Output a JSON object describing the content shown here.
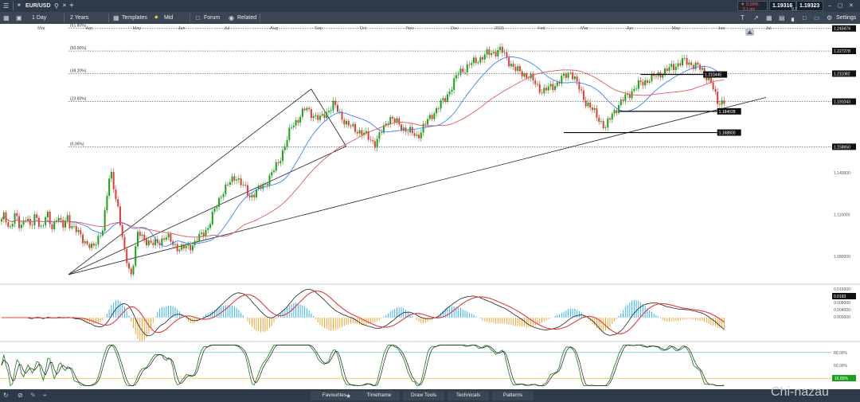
{
  "topbar": {
    "symbol": "EUR/USD",
    "change_pct": "▼ 0.09%",
    "change_pips": "0.1 pts",
    "bid": "1.19316",
    "ask": "1.19323",
    "spread": "0.7",
    "settings_label": "Settings"
  },
  "toolbar": {
    "interval": "1 Day",
    "range": "2 Years",
    "templates": "Templates",
    "mode": "Mid",
    "forum": "Forum",
    "related": "Related"
  },
  "bottom_tabs": [
    "Favourites",
    "Timeframe",
    "Draw Tools",
    "Technicals",
    "Patterns"
  ],
  "watermark": "Chi-nazau",
  "colors": {
    "bull_candle": "#1aa11a",
    "bear_candle": "#e23b3b",
    "ma_fast": "#3a82f7",
    "ma_slow": "#e2585a",
    "macd_pos": "#36b3f0",
    "macd_neg": "#f2a431",
    "stoch_k": "#2a8a2a",
    "stoch_d": "#1a1a1a",
    "level_line": "#000000",
    "topbar_bg": "#2f3a48"
  },
  "chart_data": {
    "type": "candlestick",
    "title": "",
    "x_ticks": [
      "Mar",
      "Apr",
      "May",
      "Jun",
      "Jul",
      "Aug",
      "Sep",
      "Oct",
      "Nov",
      "Dec",
      "2021",
      "Feb",
      "Mar",
      "Apr",
      "May",
      "Jun",
      "Jul"
    ],
    "y_ticks": [
      "1.140000",
      "1.110000",
      "1.080000"
    ],
    "ylim": [
      1.063,
      1.245
    ],
    "fib_levels": [
      {
        "label": "(61.80%)",
        "value": 1.243474,
        "tag": "1.243474"
      },
      {
        "label": "(50.00%)",
        "value": 1.227278,
        "tag": "1.227278"
      },
      {
        "label": "(38.20%)",
        "value": 1.211082,
        "tag": "1.211082"
      },
      {
        "label": "(23.60%)",
        "value": 1.191043,
        "tag": "1.191043"
      },
      {
        "label": "(0.00%)",
        "value": 1.15865,
        "tag": "1.158650"
      }
    ],
    "horizontal_levels": [
      {
        "value": 1.210445,
        "tag": "1.210445",
        "x_start": 0.82,
        "x_end": 0.91
      },
      {
        "value": 1.184028,
        "tag": "1.184028",
        "x_start": 0.79,
        "x_end": 0.93
      },
      {
        "value": 1.1688,
        "tag": "1.168800",
        "x_start": 0.71,
        "x_end": 0.93
      }
    ],
    "trendline_points": [
      [
        0.0,
        1.067
      ],
      [
        1.0,
        1.194
      ]
    ],
    "channel_lines": [
      [
        [
          0.0,
          1.067
        ],
        [
          0.348,
          1.2
        ]
      ],
      [
        [
          0.348,
          1.2
        ],
        [
          0.398,
          1.159
        ]
      ],
      [
        [
          0.0,
          1.067
        ],
        [
          0.398,
          1.159
        ]
      ]
    ],
    "price_path": [
      [
        0.0,
        1.105
      ],
      [
        0.02,
        1.093
      ],
      [
        0.035,
        1.085
      ],
      [
        0.05,
        1.102
      ],
      [
        0.06,
        1.142
      ],
      [
        0.07,
        1.118
      ],
      [
        0.08,
        1.083
      ],
      [
        0.09,
        1.067
      ],
      [
        0.1,
        1.097
      ],
      [
        0.12,
        1.088
      ],
      [
        0.14,
        1.094
      ],
      [
        0.16,
        1.085
      ],
      [
        0.18,
        1.089
      ],
      [
        0.2,
        1.101
      ],
      [
        0.22,
        1.126
      ],
      [
        0.24,
        1.138
      ],
      [
        0.26,
        1.123
      ],
      [
        0.28,
        1.131
      ],
      [
        0.3,
        1.146
      ],
      [
        0.32,
        1.173
      ],
      [
        0.34,
        1.186
      ],
      [
        0.36,
        1.178
      ],
      [
        0.38,
        1.189
      ],
      [
        0.4,
        1.174
      ],
      [
        0.42,
        1.169
      ],
      [
        0.44,
        1.161
      ],
      [
        0.46,
        1.18
      ],
      [
        0.48,
        1.172
      ],
      [
        0.5,
        1.166
      ],
      [
        0.52,
        1.181
      ],
      [
        0.54,
        1.193
      ],
      [
        0.56,
        1.212
      ],
      [
        0.58,
        1.219
      ],
      [
        0.6,
        1.225
      ],
      [
        0.62,
        1.228
      ],
      [
        0.64,
        1.214
      ],
      [
        0.66,
        1.209
      ],
      [
        0.68,
        1.198
      ],
      [
        0.7,
        1.204
      ],
      [
        0.72,
        1.213
      ],
      [
        0.74,
        1.192
      ],
      [
        0.76,
        1.179
      ],
      [
        0.77,
        1.172
      ],
      [
        0.78,
        1.183
      ],
      [
        0.8,
        1.195
      ],
      [
        0.82,
        1.204
      ],
      [
        0.84,
        1.209
      ],
      [
        0.86,
        1.214
      ],
      [
        0.88,
        1.22
      ],
      [
        0.9,
        1.217
      ],
      [
        0.91,
        1.212
      ],
      [
        0.92,
        1.207
      ],
      [
        0.93,
        1.19
      ],
      [
        0.94,
        1.192
      ]
    ],
    "macd": {
      "y_ticks": [
        "0.016000",
        "0.008000",
        "0.004000",
        "0.000000"
      ],
      "last_value": "0.0183"
    },
    "stochastic": {
      "y_ticks": [
        "80.00%",
        "50.00%"
      ],
      "upper": 80,
      "lower": 20,
      "last_value": "16.89%"
    }
  }
}
